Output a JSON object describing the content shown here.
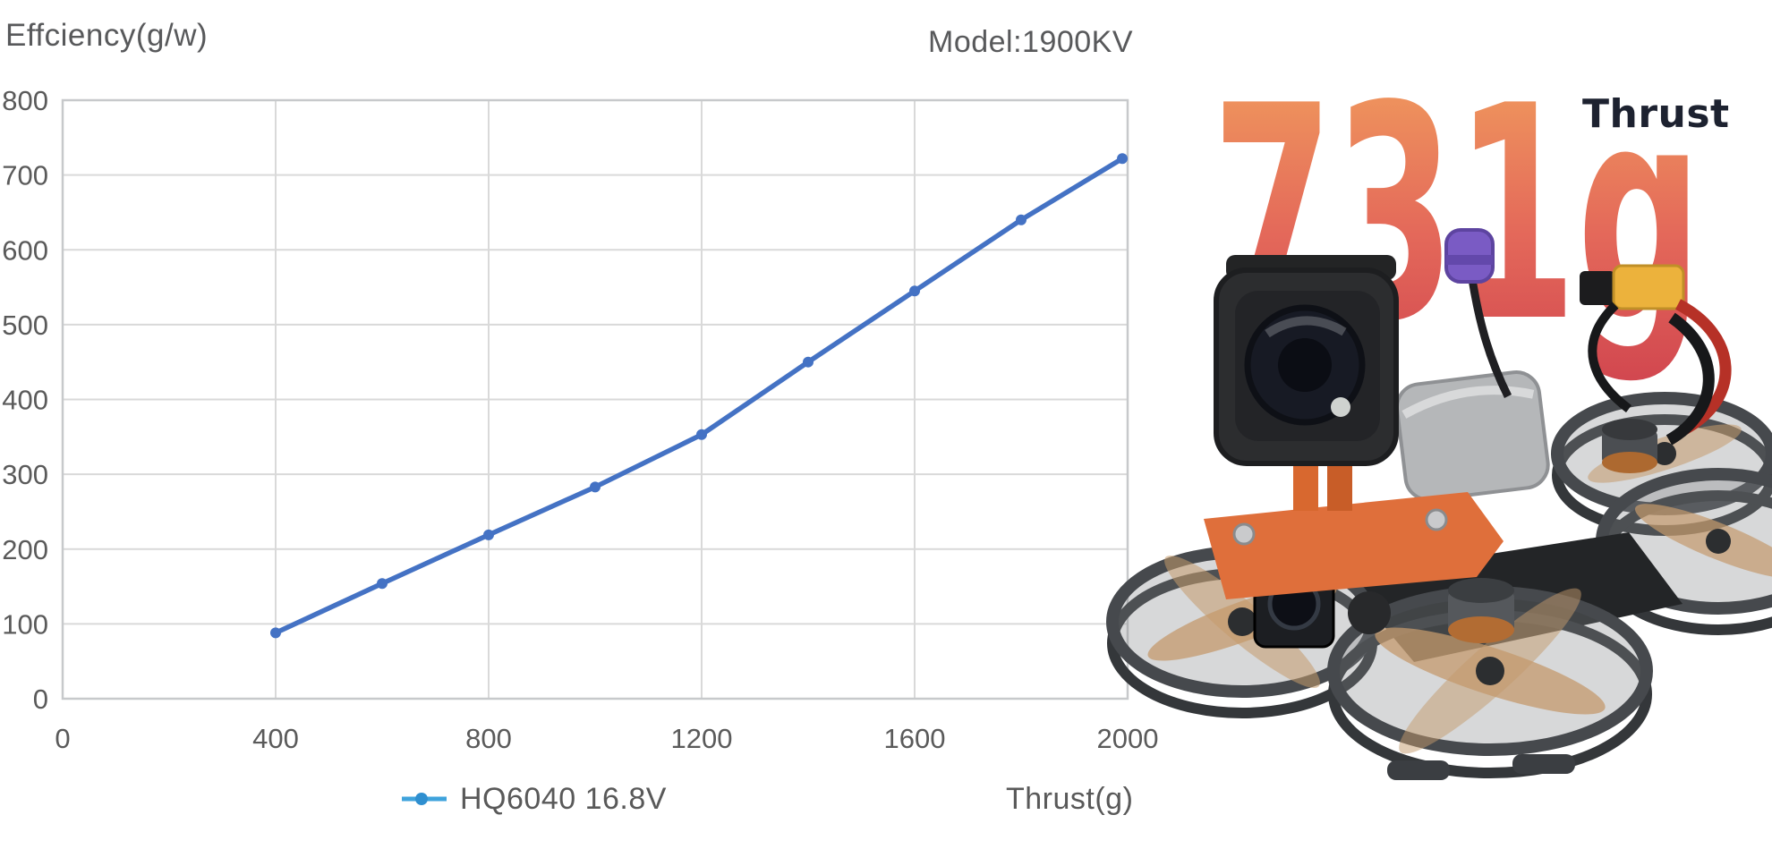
{
  "chart": {
    "title": "Effciency(g/w)",
    "model_label": "Model:1900KV",
    "legend_label": "HQ6040 16.8V",
    "x_axis_title": "Thrust(g)",
    "legend_marker_line_color": "#3FA3DC",
    "legend_marker_dot_color": "#2F8FD0"
  },
  "badge": {
    "value": "731g",
    "label": "Thrust",
    "gradient": [
      "#F2A25E",
      "#E4695A",
      "#D1464F"
    ],
    "label_color": "#1d2230"
  },
  "chart_data": {
    "type": "line",
    "title": "Effciency(g/w)",
    "subtitle": "Model:1900KV",
    "xlabel": "Thrust(g)",
    "ylabel": "Effciency(g/w)",
    "xlim": [
      0,
      2000
    ],
    "ylim": [
      0,
      800
    ],
    "x_ticks": [
      0,
      400,
      800,
      1200,
      1600,
      2000
    ],
    "y_ticks": [
      0,
      100,
      200,
      300,
      400,
      500,
      600,
      700,
      800
    ],
    "grid": true,
    "legend_position": "bottom",
    "line_color": "#4472C4",
    "grid_color": "#d9d9d9",
    "border_color": "#c7c9cb",
    "tick_color": "#5a5a5a",
    "series": [
      {
        "name": "HQ6040 16.8V",
        "points": [
          [
            400,
            88
          ],
          [
            600,
            154
          ],
          [
            800,
            219
          ],
          [
            1000,
            283
          ],
          [
            1200,
            353
          ],
          [
            1400,
            450
          ],
          [
            1600,
            545
          ],
          [
            1800,
            640
          ],
          [
            1990,
            722
          ]
        ]
      }
    ]
  }
}
